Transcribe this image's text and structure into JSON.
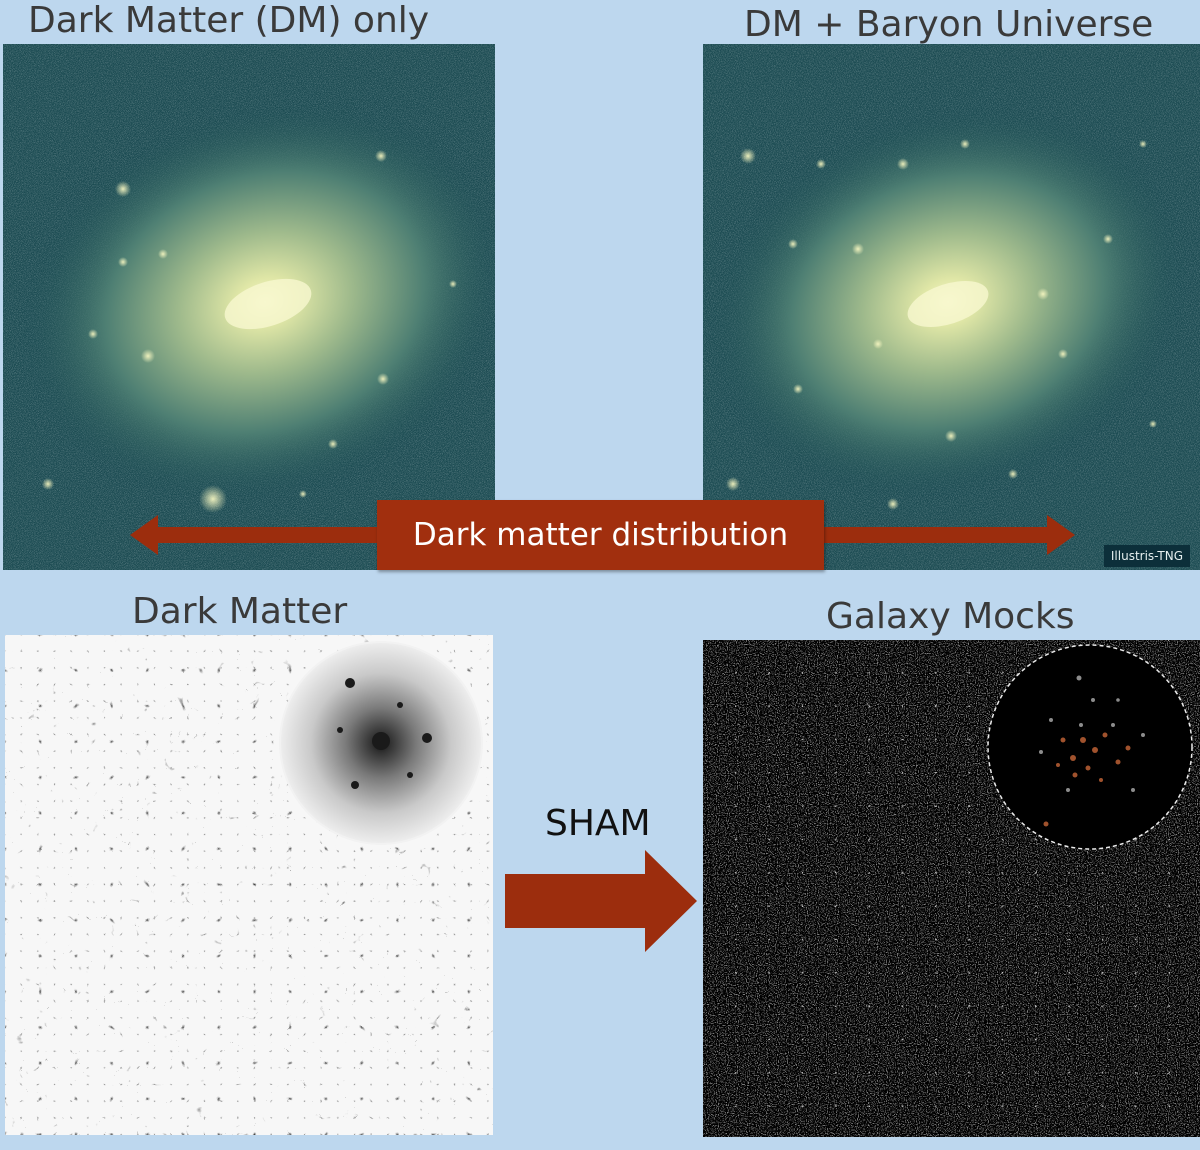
{
  "titles": {
    "dm_only": "Dark Matter (DM) only",
    "dm_baryon": "DM + Baryon Universe",
    "dark_matter": "Dark Matter",
    "galaxy_mocks": "Galaxy Mocks"
  },
  "arrow_label": "Dark matter distribution",
  "watermark": "Illustris-TNG",
  "sham_label": "SHAM",
  "colors": {
    "background": "#bdd7ee",
    "arrow": "#9c2d0d",
    "halo_core": "#f2f3bd",
    "halo_edge": "#1d4f55"
  }
}
